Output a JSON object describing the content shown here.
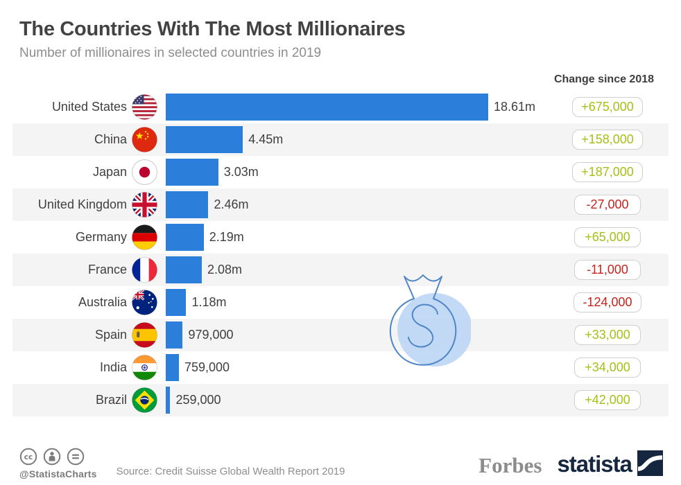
{
  "page": {
    "title": "The Countries With The Most Millionaires",
    "subtitle": "Number of millionaires in selected countries in 2019",
    "change_header": "Change since 2018"
  },
  "rows": [
    {
      "country": "United States",
      "value_label": "18.61m",
      "change_label": "+675,000",
      "trend": "positive"
    },
    {
      "country": "China",
      "value_label": "4.45m",
      "change_label": "+158,000",
      "trend": "positive"
    },
    {
      "country": "Japan",
      "value_label": "3.03m",
      "change_label": "+187,000",
      "trend": "positive"
    },
    {
      "country": "United Kingdom",
      "value_label": "2.46m",
      "change_label": "-27,000",
      "trend": "negative"
    },
    {
      "country": "Germany",
      "value_label": "2.19m",
      "change_label": "+65,000",
      "trend": "positive"
    },
    {
      "country": "France",
      "value_label": "2.08m",
      "change_label": "-11,000",
      "trend": "negative"
    },
    {
      "country": "Australia",
      "value_label": "1.18m",
      "change_label": "-124,000",
      "trend": "negative"
    },
    {
      "country": "Spain",
      "value_label": "979,000",
      "change_label": "+33,000",
      "trend": "positive"
    },
    {
      "country": "India",
      "value_label": "759,000",
      "change_label": "+34,000",
      "trend": "positive"
    },
    {
      "country": "Brazil",
      "value_label": "259,000",
      "change_label": "+42,000",
      "trend": "positive"
    }
  ],
  "chart_data": {
    "type": "bar",
    "orientation": "horizontal",
    "title": "The Countries With The Most Millionaires",
    "subtitle": "Number of millionaires in selected countries in 2019",
    "categories": [
      "United States",
      "China",
      "Japan",
      "United Kingdom",
      "Germany",
      "France",
      "Australia",
      "Spain",
      "India",
      "Brazil"
    ],
    "values_millions": [
      18.61,
      4.45,
      3.03,
      2.46,
      2.19,
      2.08,
      1.18,
      0.979,
      0.759,
      0.259
    ],
    "value_labels": [
      "18.61m",
      "4.45m",
      "3.03m",
      "2.46m",
      "2.19m",
      "2.08m",
      "1.18m",
      "979,000",
      "759,000",
      "259,000"
    ],
    "change_since_2018": [
      675000,
      158000,
      187000,
      -27000,
      65000,
      -11000,
      -124000,
      33000,
      34000,
      42000
    ],
    "change_labels": [
      "+675,000",
      "+158,000",
      "+187,000",
      "-27,000",
      "+65,000",
      "-11,000",
      "-124,000",
      "+33,000",
      "+34,000",
      "+42,000"
    ],
    "xlim": [
      0,
      18.61
    ],
    "grid": false,
    "legend": false,
    "source": "Credit Suisse Global Wealth Report 2019"
  },
  "colors": {
    "bar": "#2c7edb",
    "positive": "#a3c117",
    "negative": "#c9221c",
    "row_stripe": "#f5f4f4",
    "title_text": "#424242",
    "subtitle_text": "#8d8d8d",
    "watermark_fill": "#b9d5f5",
    "watermark_stroke": "#4f86c7",
    "statista_navy": "#15273f"
  },
  "footer": {
    "handle": "@StatistaCharts",
    "source": "Source: Credit Suisse Global Wealth Report 2019",
    "brand_left": "Forbes",
    "brand_right": "statista"
  },
  "icons": {
    "license": [
      "cc-icon",
      "attribution-person-icon",
      "equals-icon"
    ],
    "watermark": "money-bag-icon"
  }
}
